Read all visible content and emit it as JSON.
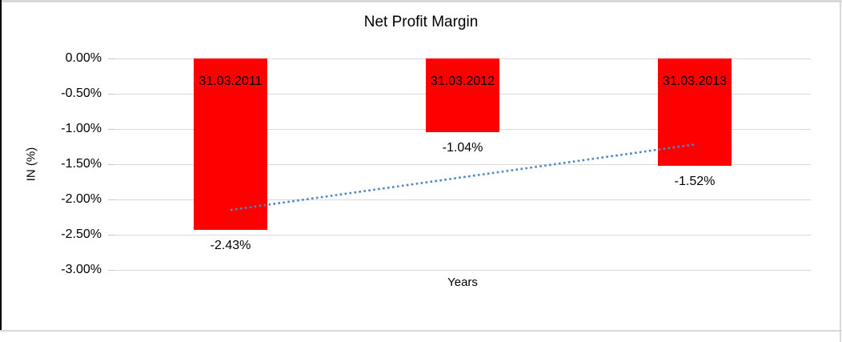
{
  "frame": {
    "background": "#ffffff",
    "border_left_color": "#000000",
    "border_color": "#d8d8d8"
  },
  "chart_data": {
    "type": "bar",
    "title": "Net Profit Margin",
    "xlabel": "Years",
    "ylabel": "IN (%)",
    "categories": [
      "31.03.2011",
      "31.03.2012",
      "31.03.2013"
    ],
    "values": [
      -2.43,
      -1.04,
      -1.52
    ],
    "data_labels": [
      "-2.43%",
      "-1.04%",
      "-1.52%"
    ],
    "ylim": [
      -3.0,
      0.0
    ],
    "yticks": [
      {
        "value": 0.0,
        "label": "0.00%"
      },
      {
        "value": -0.5,
        "label": "-0.50%"
      },
      {
        "value": -1.0,
        "label": "-1.00%"
      },
      {
        "value": -1.5,
        "label": "-1.50%"
      },
      {
        "value": -2.0,
        "label": "-2.00%"
      },
      {
        "value": -2.5,
        "label": "-2.50%"
      },
      {
        "value": -3.0,
        "label": "-3.00%"
      }
    ],
    "grid": true,
    "legend": "none",
    "bar_color": "#ff0000",
    "gridline_color": "#d9d9d9",
    "tick_color": "#c6c6c6",
    "trendline": {
      "style": "dotted",
      "color": "#4f86c6",
      "start": {
        "category_index": 0,
        "value": -2.15
      },
      "end": {
        "category_index": 2,
        "value": -1.22
      }
    }
  }
}
